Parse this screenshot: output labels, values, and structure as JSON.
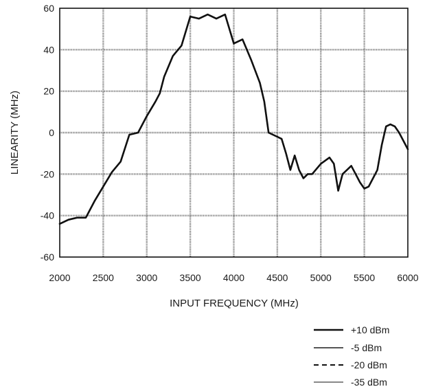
{
  "chart_data": {
    "type": "line",
    "title": "",
    "xlabel": "INPUT FREQUENCY (MHz)",
    "ylabel": "LINEARITY (MHz)",
    "xlim": [
      2000,
      6000
    ],
    "ylim": [
      -60,
      60
    ],
    "x_ticks": [
      2000,
      2500,
      3000,
      3500,
      4000,
      4500,
      5000,
      5500,
      6000
    ],
    "y_ticks": [
      -60,
      -40,
      -20,
      0,
      20,
      40,
      60
    ],
    "x_tick_labels": [
      "2000",
      "2500",
      "3000",
      "3500",
      "4000",
      "4500",
      "5000",
      "5500",
      "6000"
    ],
    "y_tick_labels": [
      "-60",
      "-40",
      "-20",
      "0",
      "20",
      "40",
      "60"
    ],
    "grid": true,
    "legend_position": "bottom-right",
    "series": [
      {
        "name": "+10 dBm",
        "style": "solid",
        "color": "#111111",
        "x": [
          2000,
          2100,
          2200,
          2300,
          2400,
          2500,
          2600,
          2700,
          2800,
          2900,
          3000,
          3100,
          3150,
          3200,
          3300,
          3400,
          3500,
          3600,
          3700,
          3800,
          3900,
          4000,
          4100,
          4200,
          4300,
          4350,
          4400,
          4500,
          4550,
          4600,
          4650,
          4700,
          4750,
          4800,
          4850,
          4900,
          5000,
          5100,
          5150,
          5200,
          5250,
          5300,
          5350,
          5400,
          5450,
          5500,
          5550,
          5600,
          5650,
          5700,
          5750,
          5800,
          5850,
          5900,
          6000
        ],
        "y": [
          -44,
          -42,
          -41,
          -41,
          -33,
          -26,
          -19,
          -14,
          -1,
          0,
          8,
          15,
          19,
          27,
          37,
          42,
          56,
          55,
          57,
          55,
          57,
          43,
          45,
          35,
          24,
          15,
          0,
          -2,
          -3,
          -10,
          -18,
          -11,
          -18,
          -22,
          -20,
          -20,
          -15,
          -12,
          -15,
          -28,
          -20,
          -18,
          -16,
          -20,
          -24,
          -27,
          -26,
          -22,
          -18,
          -6,
          3,
          4,
          3,
          0,
          -8
        ]
      },
      {
        "name": "-5 dBm",
        "style": "solid",
        "color": "#555555",
        "x": [
          2000,
          2100,
          2200,
          2300,
          2400,
          2500,
          2600,
          2700,
          2800,
          2900,
          3000,
          3100,
          3150,
          3200,
          3300,
          3400,
          3500,
          3600,
          3700,
          3800,
          3900,
          4000,
          4100,
          4200,
          4300,
          4350,
          4400,
          4500,
          4550,
          4600,
          4650,
          4700,
          4750,
          4800,
          4850,
          4900,
          5000,
          5100,
          5150,
          5200,
          5250,
          5300,
          5350,
          5400,
          5450,
          5500,
          5550,
          5600,
          5650,
          5700,
          5750,
          5800,
          5850,
          5900,
          6000
        ],
        "y": [
          -44,
          -42,
          -41,
          -41,
          -33,
          -26,
          -19,
          -14,
          -1,
          0,
          8,
          15,
          19,
          27,
          37,
          42,
          56,
          55,
          57,
          55,
          57,
          43,
          45,
          35,
          24,
          15,
          0,
          -2,
          -3,
          -10,
          -18,
          -11,
          -18,
          -22,
          -20,
          -20,
          -15,
          -12,
          -15,
          -28,
          -20,
          -18,
          -16,
          -20,
          -24,
          -27,
          -26,
          -22,
          -18,
          -6,
          3,
          4,
          3,
          0,
          -8
        ]
      },
      {
        "name": "-20 dBm",
        "style": "dashed",
        "color": "#111111",
        "x": [
          2000,
          2100,
          2200,
          2300,
          2400,
          2500,
          2600,
          2700,
          2800,
          2900,
          3000,
          3100,
          3150,
          3200,
          3300,
          3400,
          3500,
          3600,
          3700,
          3800,
          3900,
          4000,
          4100,
          4200,
          4300,
          4350,
          4400,
          4500,
          4550,
          4600,
          4650,
          4700,
          4750,
          4800,
          4850,
          4900,
          5000,
          5100,
          5150,
          5200,
          5250,
          5300,
          5350,
          5400,
          5450,
          5500,
          5550,
          5600,
          5650,
          5700,
          5750,
          5800,
          5850,
          5900,
          6000
        ],
        "y": [
          -44,
          -42,
          -41,
          -41,
          -33,
          -26,
          -19,
          -14,
          -1,
          0,
          8,
          15,
          19,
          27,
          37,
          42,
          56,
          55,
          57,
          55,
          57,
          43,
          45,
          35,
          24,
          15,
          0,
          -2,
          -3,
          -10,
          -18,
          -11,
          -18,
          -22,
          -20,
          -20,
          -15,
          -12,
          -15,
          -28,
          -20,
          -18,
          -16,
          -20,
          -24,
          -27,
          -26,
          -22,
          -18,
          -6,
          3,
          4,
          3,
          0,
          -8
        ]
      },
      {
        "name": "-35 dBm",
        "style": "solid",
        "color": "#888888",
        "x": [
          2000,
          2100,
          2200,
          2300,
          2400,
          2500,
          2600,
          2700,
          2800,
          2900,
          3000,
          3100,
          3150,
          3200,
          3300,
          3400,
          3500,
          3600,
          3700,
          3800,
          3900,
          4000,
          4100,
          4200,
          4300,
          4350,
          4400,
          4500,
          4550,
          4600,
          4650,
          4700,
          4750,
          4800,
          4850,
          4900,
          5000,
          5100,
          5150,
          5200,
          5250,
          5300,
          5350,
          5400,
          5450,
          5500,
          5550,
          5600,
          5650,
          5700,
          5750,
          5800,
          5850,
          5900,
          6000
        ],
        "y": [
          -44,
          -42,
          -41,
          -41,
          -33,
          -26,
          -19,
          -14,
          -1,
          0,
          8,
          15,
          19,
          27,
          37,
          42,
          56,
          55,
          57,
          55,
          57,
          43,
          45,
          35,
          24,
          15,
          0,
          -2,
          -3,
          -10,
          -18,
          -11,
          -18,
          -22,
          -20,
          -20,
          -15,
          -12,
          -15,
          -28,
          -20,
          -18,
          -16,
          -20,
          -24,
          -27,
          -26,
          -22,
          -18,
          -6,
          3,
          4,
          3,
          0,
          -8
        ]
      }
    ]
  }
}
